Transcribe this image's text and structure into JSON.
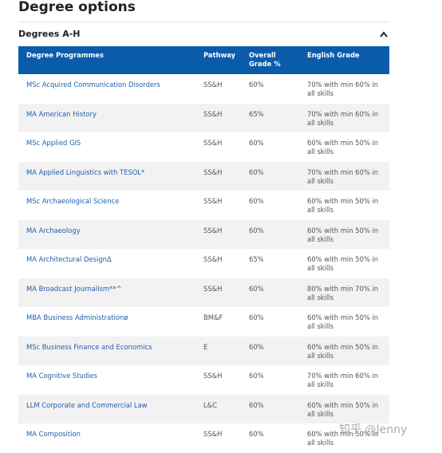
{
  "header": {
    "title": "Degree options"
  },
  "section": {
    "title": "Degrees A-H"
  },
  "table": {
    "columns": [
      "Degree Programmes",
      "Pathway",
      "Overall Grade %",
      "English Grade"
    ],
    "rows": [
      [
        "MSc Acquired Communication Disorders",
        "SS&H",
        "60%",
        "70% with min 60% in all skills"
      ],
      [
        "MA American History",
        "SS&H",
        "65%",
        "70% with min 60% in all skills"
      ],
      [
        "MSc Applied GIS",
        "SS&H",
        "60%",
        "60% with min 50% in all skills"
      ],
      [
        "MA Applied Linguistics with TESOL*",
        "SS&H",
        "60%",
        "70% with min 60% in all skills"
      ],
      [
        "MSc Archaeological Science",
        "SS&H",
        "60%",
        "60% with min 50% in all skills"
      ],
      [
        "MA Archaeology",
        "SS&H",
        "60%",
        "60% with min 50% in all skills"
      ],
      [
        "MA Architectural DesignΔ",
        "SS&H",
        "65%",
        "60% with min 50% in all skills"
      ],
      [
        "MA Broadcast Journalism**^",
        "SS&H",
        "60%",
        "80% with min 70% in all skills"
      ],
      [
        "MBA Business Administrationø",
        "BM&F",
        "60%",
        "60% with min 50% in all skills"
      ],
      [
        "MSc Business Finance and Economics",
        "E",
        "60%",
        "60% with min 50% in all skills"
      ],
      [
        "MA Cognitive Studies",
        "SS&H",
        "60%",
        "70% with min 60% in all skills"
      ],
      [
        "LLM Corporate and Commercial Law",
        "L&C",
        "60%",
        "60% with min 50% in all skills"
      ],
      [
        "MA Composition",
        "SS&H",
        "60%",
        "60% with min 50% in all skills"
      ]
    ]
  },
  "watermark": "知乎 @Jenny"
}
